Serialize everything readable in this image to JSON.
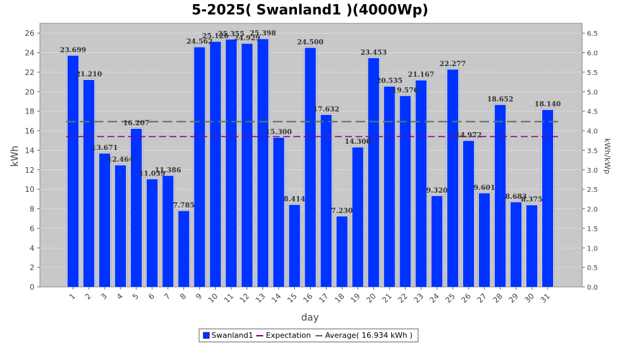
{
  "chart_data": {
    "type": "bar",
    "title": "5-2025( Swanland1 )(4000Wp)",
    "xlabel": "day",
    "ylabel": "kWh",
    "ylabel_right": "kWh/kWp",
    "ylim": [
      0,
      27
    ],
    "ylim_right": [
      0,
      6.75
    ],
    "yticks": [
      0,
      2,
      4,
      6,
      8,
      10,
      12,
      14,
      16,
      18,
      20,
      22,
      24,
      26
    ],
    "yticks_right": [
      "0.0",
      "0.5",
      "1.0",
      "1.5",
      "2.0",
      "2.5",
      "3.0",
      "3.5",
      "4.0",
      "4.5",
      "5.0",
      "5.5",
      "6.0",
      "6.5"
    ],
    "categories": [
      "1",
      "2",
      "3",
      "4",
      "5",
      "6",
      "7",
      "8",
      "9",
      "10",
      "11",
      "12",
      "13",
      "14",
      "15",
      "16",
      "17",
      "18",
      "19",
      "20",
      "21",
      "22",
      "23",
      "24",
      "25",
      "26",
      "27",
      "28",
      "29",
      "30",
      "31"
    ],
    "series": [
      {
        "name": "Swanland1",
        "color": "#0033ff",
        "values": [
          23.699,
          21.21,
          13.671,
          12.464,
          16.207,
          11.039,
          11.386,
          7.785,
          24.562,
          25.126,
          25.355,
          24.929,
          25.398,
          15.3,
          8.414,
          24.5,
          17.632,
          7.23,
          14.3,
          23.453,
          20.535,
          19.57,
          21.167,
          9.32,
          22.277,
          14.972,
          9.601,
          18.652,
          8.683,
          8.375,
          18.14
        ],
        "labels": [
          "23.699",
          "21.210",
          "13.671",
          "12.464",
          "16.207",
          "11.039",
          "11.386",
          "7.785",
          "24.562",
          "25.126",
          "25.355",
          "24.929",
          "25.398",
          "15.300",
          "8.414",
          "24.500",
          "17.632",
          "7.230",
          "14.300",
          "23.453",
          "20.535",
          "19.570",
          "21.167",
          "9.320",
          "22.277",
          "14.972",
          "9.601",
          "18.652",
          "8.683",
          "8.375",
          "18.140"
        ]
      }
    ],
    "lines": [
      {
        "name": "Expectation",
        "value": 15.4,
        "color": "#880088"
      },
      {
        "name": "Average( 16.934 kWh )",
        "value": 16.934,
        "color": "#557766"
      }
    ],
    "grid": true,
    "legend": "bottom",
    "legend_entries": [
      "Swanland1",
      "Expectation",
      "Average( 16.934 kWh )"
    ]
  }
}
